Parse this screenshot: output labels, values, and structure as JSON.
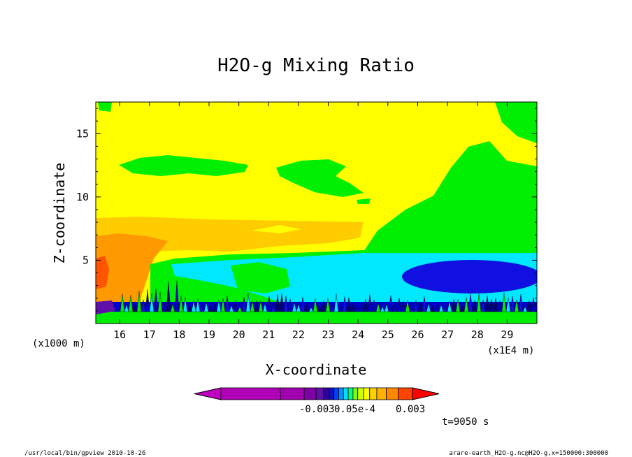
{
  "chart_data": {
    "type": "heatmap",
    "title": "H2O-g Mixing Ratio",
    "xlabel": "X-coordinate",
    "ylabel": "Z-coordinate",
    "x_unit": "(x1E4 m)",
    "y_unit": "(x1000 m)",
    "xlim": [
      15.2,
      30
    ],
    "ylim": [
      0,
      17.5
    ],
    "x_ticks": [
      "16",
      "17",
      "18",
      "19",
      "20",
      "21",
      "22",
      "23",
      "24",
      "25",
      "26",
      "27",
      "28",
      "29"
    ],
    "y_ticks": [
      "5",
      "10",
      "15"
    ],
    "colorbar_labels": [
      "-0.003",
      "0.05e-4",
      "0.003"
    ],
    "colorbar_colors": [
      "#c000c0",
      "#b000b8",
      "#a000b0",
      "#8000a8",
      "#6010a8",
      "#3000a0",
      "#1010c0",
      "#0040ff",
      "#0090ff",
      "#00e0ff",
      "#00ff80",
      "#80ff00",
      "#d0ff00",
      "#ffff00",
      "#ffd000",
      "#ffb000",
      "#ff8800",
      "#ff4400",
      "#ff0000"
    ],
    "regions": [
      {
        "level": "green",
        "color": "#00ee00",
        "x": [
          27,
          30
        ],
        "z": [
          6.5,
          17.5
        ]
      },
      {
        "level": "yellow",
        "color": "#ffff00",
        "x": [
          15.2,
          27
        ],
        "z": [
          8.5,
          17.5
        ]
      },
      {
        "level": "light-orange",
        "color": "#ffcc00",
        "x": [
          15.2,
          24
        ],
        "z": [
          6.5,
          8.5
        ]
      },
      {
        "level": "orange",
        "color": "#ff9900",
        "x": [
          15.2,
          17
        ],
        "z": [
          3,
          7
        ]
      },
      {
        "level": "cyan",
        "color": "#00e8ff",
        "x": [
          18,
          30
        ],
        "z": [
          1.5,
          4.5
        ]
      },
      {
        "level": "blue",
        "color": "#1010e0",
        "x": [
          25.5,
          30
        ],
        "z": [
          2.5,
          4.8
        ]
      },
      {
        "level": "dark-blue",
        "color": "#0000c8",
        "x": [
          15.2,
          30
        ],
        "z": [
          0.5,
          1.5
        ]
      }
    ]
  },
  "footer": {
    "left": "/usr/local/bin/gpview  2010-10-26",
    "right": "arare-earth_H2O-g.nc@H2O-g,x=150000:300000",
    "time": "t=9050 s"
  }
}
